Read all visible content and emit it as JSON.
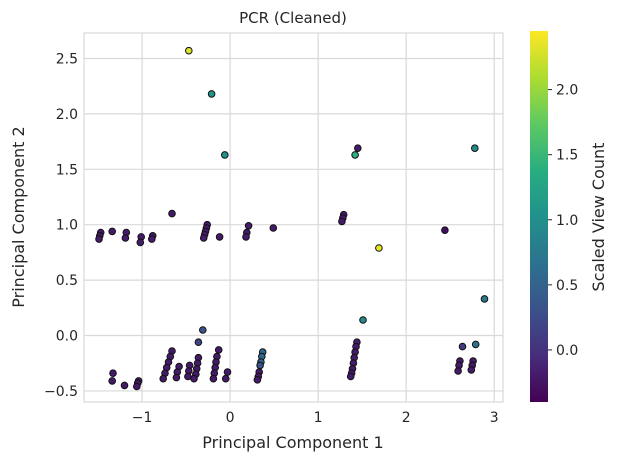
{
  "chart_data": {
    "type": "scatter",
    "title": "PCR (Cleaned)",
    "xlabel": "Principal Component 1",
    "ylabel": "Principal Component 2",
    "xlim": [
      -1.66,
      3.1
    ],
    "ylim": [
      -0.6,
      2.73
    ],
    "xticks": [
      -1,
      0,
      1,
      2,
      3
    ],
    "xtick_labels": [
      "−1",
      "0",
      "1",
      "2",
      "3"
    ],
    "yticks": [
      -0.5,
      0.0,
      0.5,
      1.0,
      1.5,
      2.0,
      2.5
    ],
    "ytick_labels": [
      "−0.5",
      "0.0",
      "0.5",
      "1.0",
      "1.5",
      "2.0",
      "2.5"
    ],
    "grid": true,
    "colormap": "viridis",
    "colorbar": {
      "label": "Scaled View Count",
      "range": [
        -0.4,
        2.45
      ],
      "ticks": [
        0.0,
        0.5,
        1.0,
        1.5,
        2.0
      ],
      "tick_labels": [
        "0.0",
        "0.5",
        "1.0",
        "1.5",
        "2.0"
      ]
    },
    "points": [
      {
        "x": -0.47,
        "y": 2.57,
        "c": 2.3
      },
      {
        "x": -0.21,
        "y": 2.18,
        "c": 1.05
      },
      {
        "x": -0.06,
        "y": 1.63,
        "c": 1.05
      },
      {
        "x": 1.45,
        "y": 1.69,
        "c": -0.2
      },
      {
        "x": 1.42,
        "y": 1.63,
        "c": 1.4
      },
      {
        "x": 2.78,
        "y": 1.69,
        "c": 0.95
      },
      {
        "x": -0.66,
        "y": 1.1,
        "c": -0.2
      },
      {
        "x": 1.29,
        "y": 1.09,
        "c": -0.2
      },
      {
        "x": 1.28,
        "y": 1.06,
        "c": -0.2
      },
      {
        "x": 1.27,
        "y": 1.03,
        "c": -0.2
      },
      {
        "x": 1.69,
        "y": 0.79,
        "c": 2.35
      },
      {
        "x": 2.44,
        "y": 0.95,
        "c": -0.3
      },
      {
        "x": 2.89,
        "y": 0.33,
        "c": 0.75
      },
      {
        "x": 1.51,
        "y": 0.14,
        "c": 0.95
      },
      {
        "x": -1.47,
        "y": 0.93,
        "c": -0.2
      },
      {
        "x": -1.48,
        "y": 0.9,
        "c": -0.2
      },
      {
        "x": -1.49,
        "y": 0.87,
        "c": -0.2
      },
      {
        "x": -1.34,
        "y": 0.94,
        "c": -0.2
      },
      {
        "x": -1.18,
        "y": 0.93,
        "c": -0.2
      },
      {
        "x": -1.19,
        "y": 0.88,
        "c": -0.2
      },
      {
        "x": -1.01,
        "y": 0.89,
        "c": -0.2
      },
      {
        "x": -1.02,
        "y": 0.84,
        "c": -0.2
      },
      {
        "x": -0.88,
        "y": 0.9,
        "c": -0.2
      },
      {
        "x": -0.89,
        "y": 0.87,
        "c": -0.2
      },
      {
        "x": -0.26,
        "y": 1.0,
        "c": -0.2
      },
      {
        "x": -0.27,
        "y": 0.97,
        "c": -0.2
      },
      {
        "x": -0.28,
        "y": 0.94,
        "c": -0.2
      },
      {
        "x": -0.29,
        "y": 0.91,
        "c": -0.2
      },
      {
        "x": -0.3,
        "y": 0.88,
        "c": -0.2
      },
      {
        "x": -0.12,
        "y": 0.89,
        "c": -0.2
      },
      {
        "x": 0.21,
        "y": 0.99,
        "c": -0.2
      },
      {
        "x": 0.19,
        "y": 0.93,
        "c": -0.2
      },
      {
        "x": 0.18,
        "y": 0.89,
        "c": -0.2
      },
      {
        "x": 0.49,
        "y": 0.97,
        "c": -0.2
      },
      {
        "x": -0.31,
        "y": 0.05,
        "c": 0.3
      },
      {
        "x": -0.36,
        "y": -0.06,
        "c": 0.2
      },
      {
        "x": -0.66,
        "y": -0.14,
        "c": -0.2
      },
      {
        "x": -0.68,
        "y": -0.19,
        "c": -0.2
      },
      {
        "x": -0.7,
        "y": -0.24,
        "c": -0.2
      },
      {
        "x": -0.72,
        "y": -0.29,
        "c": -0.2
      },
      {
        "x": -0.74,
        "y": -0.34,
        "c": -0.2
      },
      {
        "x": -0.76,
        "y": -0.39,
        "c": -0.2
      },
      {
        "x": -0.58,
        "y": -0.28,
        "c": -0.2
      },
      {
        "x": -0.6,
        "y": -0.33,
        "c": -0.2
      },
      {
        "x": -0.61,
        "y": -0.38,
        "c": -0.2
      },
      {
        "x": -0.46,
        "y": -0.27,
        "c": -0.2
      },
      {
        "x": -0.47,
        "y": -0.32,
        "c": -0.2
      },
      {
        "x": -0.48,
        "y": -0.37,
        "c": -0.2
      },
      {
        "x": -0.36,
        "y": -0.2,
        "c": -0.2
      },
      {
        "x": -0.37,
        "y": -0.25,
        "c": -0.2
      },
      {
        "x": -0.38,
        "y": -0.3,
        "c": -0.2
      },
      {
        "x": -0.39,
        "y": -0.35,
        "c": -0.2
      },
      {
        "x": -0.41,
        "y": -0.39,
        "c": -0.2
      },
      {
        "x": -0.13,
        "y": -0.13,
        "c": -0.2
      },
      {
        "x": -0.15,
        "y": -0.19,
        "c": -0.2
      },
      {
        "x": -0.16,
        "y": -0.24,
        "c": -0.2
      },
      {
        "x": -0.17,
        "y": -0.29,
        "c": -0.2
      },
      {
        "x": -0.18,
        "y": -0.34,
        "c": -0.2
      },
      {
        "x": -0.19,
        "y": -0.39,
        "c": -0.2
      },
      {
        "x": -0.03,
        "y": -0.33,
        "c": -0.2
      },
      {
        "x": -0.05,
        "y": -0.39,
        "c": -0.2
      },
      {
        "x": 0.37,
        "y": -0.15,
        "c": 0.55
      },
      {
        "x": 0.36,
        "y": -0.19,
        "c": 0.55
      },
      {
        "x": 0.35,
        "y": -0.24,
        "c": 0.55
      },
      {
        "x": 0.34,
        "y": -0.27,
        "c": 0.3
      },
      {
        "x": 0.33,
        "y": -0.33,
        "c": -0.2
      },
      {
        "x": 0.32,
        "y": -0.37,
        "c": -0.2
      },
      {
        "x": 0.31,
        "y": -0.4,
        "c": -0.2
      },
      {
        "x": -1.33,
        "y": -0.34,
        "c": -0.2
      },
      {
        "x": -1.34,
        "y": -0.41,
        "c": -0.2
      },
      {
        "x": -1.2,
        "y": -0.45,
        "c": -0.2
      },
      {
        "x": -1.04,
        "y": -0.41,
        "c": -0.2
      },
      {
        "x": -1.05,
        "y": -0.43,
        "c": -0.2
      },
      {
        "x": -1.06,
        "y": -0.46,
        "c": -0.2
      },
      {
        "x": 1.44,
        "y": -0.06,
        "c": -0.15
      },
      {
        "x": 1.43,
        "y": -0.1,
        "c": -0.2
      },
      {
        "x": 1.42,
        "y": -0.15,
        "c": -0.2
      },
      {
        "x": 1.41,
        "y": -0.2,
        "c": -0.2
      },
      {
        "x": 1.4,
        "y": -0.25,
        "c": -0.2
      },
      {
        "x": 1.39,
        "y": -0.3,
        "c": -0.2
      },
      {
        "x": 1.38,
        "y": -0.34,
        "c": -0.2
      },
      {
        "x": 1.37,
        "y": -0.37,
        "c": -0.2
      },
      {
        "x": 2.64,
        "y": -0.1,
        "c": 0.1
      },
      {
        "x": 2.79,
        "y": -0.08,
        "c": 0.65
      },
      {
        "x": 2.61,
        "y": -0.23,
        "c": -0.2
      },
      {
        "x": 2.6,
        "y": -0.27,
        "c": -0.2
      },
      {
        "x": 2.59,
        "y": -0.32,
        "c": -0.2
      },
      {
        "x": 2.76,
        "y": -0.23,
        "c": -0.2
      },
      {
        "x": 2.75,
        "y": -0.27,
        "c": -0.2
      },
      {
        "x": 2.74,
        "y": -0.31,
        "c": -0.2
      }
    ]
  }
}
